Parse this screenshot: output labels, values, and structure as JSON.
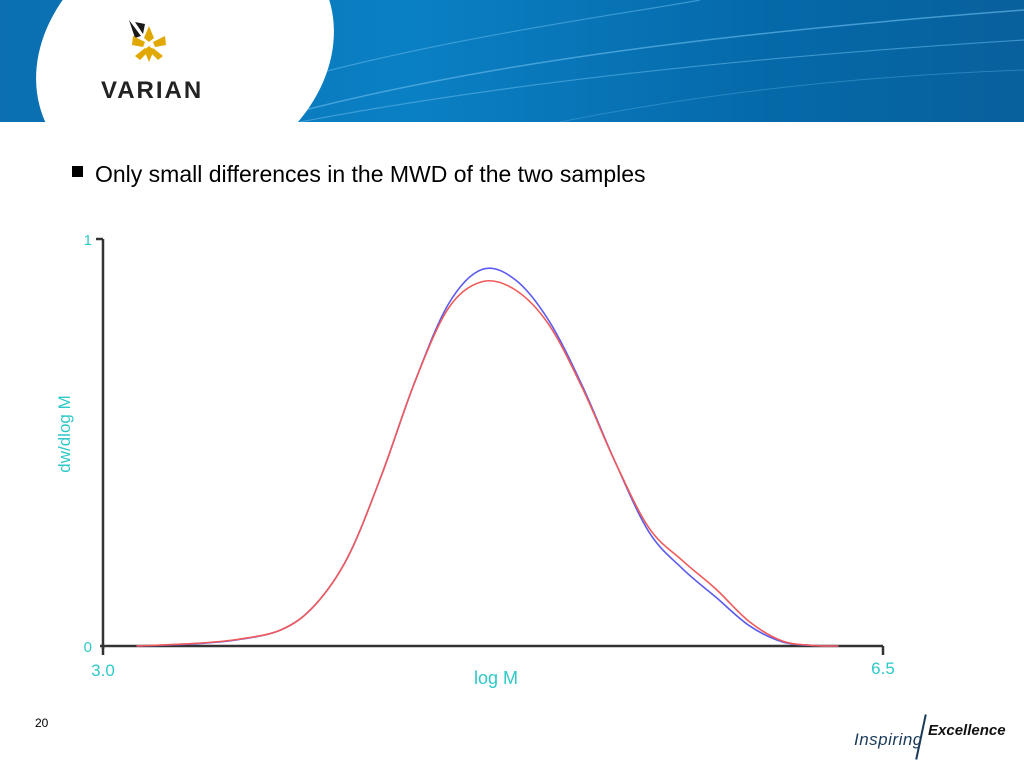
{
  "brand": {
    "logo_text": "VARIAN",
    "footer_word_1": "Inspiring",
    "footer_word_2": "Excellence"
  },
  "slide": {
    "bullet_text": "Only small differences in the MWD of the two samples",
    "page_number": "20"
  },
  "colors": {
    "header_blue": "#0a80c4",
    "axis_label": "#2ec8c8",
    "series_blue": "#5b5bf0",
    "series_red": "#f05a5a"
  },
  "chart_data": {
    "type": "line",
    "xlabel": "log M",
    "ylabel": "dw/dlog M",
    "xlim": [
      3.0,
      6.5
    ],
    "ylim": [
      0,
      1
    ],
    "x_tick_labels": [
      "3.0",
      "6.5"
    ],
    "y_tick_labels": [
      "0",
      "1"
    ],
    "grid": false,
    "series": [
      {
        "color": "#5b5bf0",
        "x": [
          3.15,
          3.4,
          3.6,
          3.8,
          3.95,
          4.1,
          4.25,
          4.4,
          4.55,
          4.7,
          4.85,
          5.0,
          5.15,
          5.3,
          5.45,
          5.6,
          5.75,
          5.9,
          6.05,
          6.2,
          6.3
        ],
        "y": [
          0.0,
          0.005,
          0.015,
          0.04,
          0.1,
          0.22,
          0.42,
          0.65,
          0.84,
          0.925,
          0.9,
          0.8,
          0.64,
          0.45,
          0.28,
          0.19,
          0.12,
          0.05,
          0.01,
          0.001,
          0.0
        ]
      },
      {
        "color": "#f05a5a",
        "x": [
          3.15,
          3.4,
          3.6,
          3.8,
          3.95,
          4.1,
          4.25,
          4.4,
          4.55,
          4.7,
          4.85,
          5.0,
          5.15,
          5.3,
          5.45,
          5.6,
          5.75,
          5.9,
          6.05,
          6.2,
          6.3
        ],
        "y": [
          0.0,
          0.006,
          0.016,
          0.04,
          0.1,
          0.22,
          0.42,
          0.65,
          0.83,
          0.895,
          0.875,
          0.79,
          0.635,
          0.45,
          0.29,
          0.21,
          0.14,
          0.06,
          0.012,
          0.001,
          0.0
        ]
      }
    ]
  }
}
